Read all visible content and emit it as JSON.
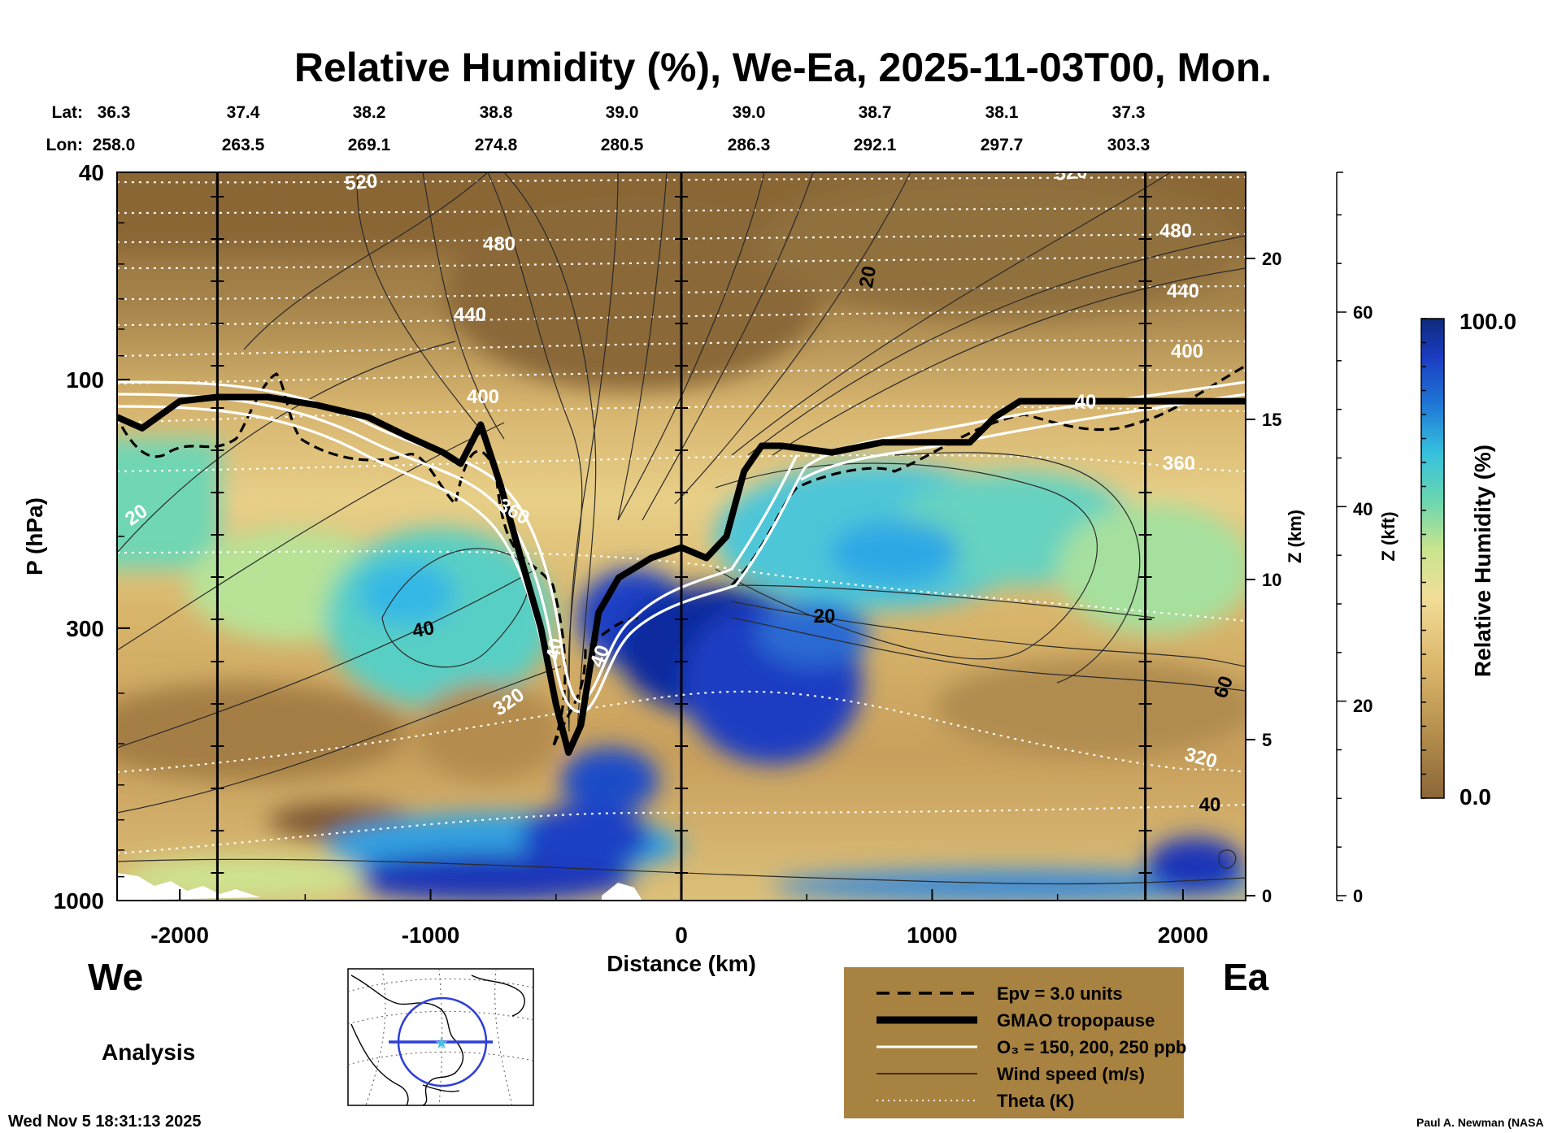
{
  "chart_data": {
    "type": "heatmap",
    "title": "Relative Humidity (%), We-Ea, 2025-11-03T00, Mon.",
    "xlabel": "Distance (km)",
    "ylabel": "P (hPa)",
    "z_km_label": "Z (km)",
    "z_kft_label": "Z (kft)",
    "colorbar_label": "Relative Humidity (%)",
    "colorbar_min": "0.0",
    "colorbar_max": "100.0",
    "xlim": [
      -2250,
      2250
    ],
    "ylim_hpa": [
      1000,
      40
    ],
    "y_scale": "log",
    "x_ticks": [
      "-2000",
      "-1000",
      "0",
      "1000",
      "2000"
    ],
    "y_ticks": [
      "40",
      "100",
      "300",
      "1000"
    ],
    "z_km_ticks": [
      "0",
      "5",
      "10",
      "15",
      "20"
    ],
    "z_kft_ticks": [
      "0",
      "20",
      "40",
      "60"
    ],
    "lat_label": "Lat:",
    "lon_label": "Lon:",
    "lats": [
      "36.3",
      "37.4",
      "38.2",
      "38.8",
      "39.0",
      "39.0",
      "38.7",
      "38.1",
      "37.3"
    ],
    "lons": [
      "258.0",
      "263.5",
      "269.1",
      "274.8",
      "280.5",
      "286.3",
      "292.1",
      "297.7",
      "303.3"
    ],
    "left_label": "We",
    "right_label": "Ea",
    "mode_label": "Analysis",
    "theta_labels": [
      "520",
      "520",
      "480",
      "480",
      "440",
      "440",
      "400",
      "400",
      "360",
      "360",
      "320",
      "320"
    ],
    "wind_labels": [
      "20",
      "20",
      "40",
      "60",
      "20",
      "40",
      "40",
      "40",
      "40"
    ],
    "tropopause_series": {
      "name": "GMAO tropopause",
      "x": [
        -2250,
        -2150,
        -2000,
        -1850,
        -1650,
        -1450,
        -1250,
        -1100,
        -950,
        -880,
        -800,
        -720,
        -640,
        -560,
        -500,
        -450,
        -400,
        -330,
        -250,
        -120,
        0,
        100,
        180,
        250,
        320,
        400,
        600,
        800,
        1000,
        1150,
        1250,
        1350,
        1500,
        1650,
        1900,
        2250
      ],
      "p": [
        118,
        124,
        110,
        108,
        108,
        112,
        118,
        128,
        138,
        145,
        122,
        160,
        220,
        300,
        420,
        520,
        460,
        280,
        240,
        220,
        210,
        220,
        200,
        150,
        134,
        134,
        138,
        132,
        132,
        132,
        118,
        110,
        110,
        110,
        110,
        110
      ]
    },
    "legend": [
      {
        "style": "dashed",
        "label": "Epv = 3.0 units"
      },
      {
        "style": "thick",
        "label": "GMAO tropopause"
      },
      {
        "style": "white",
        "label": "O₃ = 150, 200, 250 ppb"
      },
      {
        "style": "thin",
        "label": "Wind speed (m/s)"
      },
      {
        "style": "dotted",
        "label": "Theta (K)"
      }
    ],
    "colors": {
      "dry": "#8b6536",
      "mid": "#f0d68e",
      "moist": "#3fd0c4",
      "wet": "#0d2a8a",
      "legend_bg": "#a88240"
    }
  },
  "footer": {
    "timestamp": "Wed Nov  5 18:31:13 2025",
    "credit": "Paul A. Newman (NASA"
  }
}
